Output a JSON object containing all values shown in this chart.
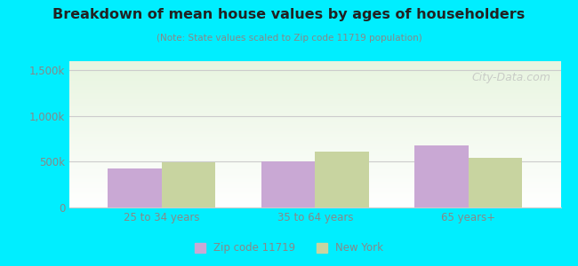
{
  "title": "Breakdown of mean house values by ages of householders",
  "subtitle": "(Note: State values scaled to Zip code 11719 population)",
  "categories": [
    "25 to 34 years",
    "35 to 64 years",
    "65 years+"
  ],
  "zip_values": [
    430000,
    500000,
    680000
  ],
  "ny_values": [
    490000,
    610000,
    545000
  ],
  "ylim": [
    0,
    1600000
  ],
  "yticks": [
    0,
    500000,
    1000000,
    1500000
  ],
  "ytick_labels": [
    "0",
    "500k",
    "1,000k",
    "1,500k"
  ],
  "zip_color": "#c9a8d4",
  "ny_color": "#c8d4a0",
  "background_color": "#00eeff",
  "plot_bg_top": "#e8f5e0",
  "plot_bg_bottom": "#ffffff",
  "grid_color": "#cccccc",
  "title_color": "#222222",
  "subtitle_color": "#888888",
  "tick_color": "#888888",
  "legend_zip_label": "Zip code 11719",
  "legend_ny_label": "New York",
  "bar_width": 0.35,
  "watermark": "City-Data.com"
}
